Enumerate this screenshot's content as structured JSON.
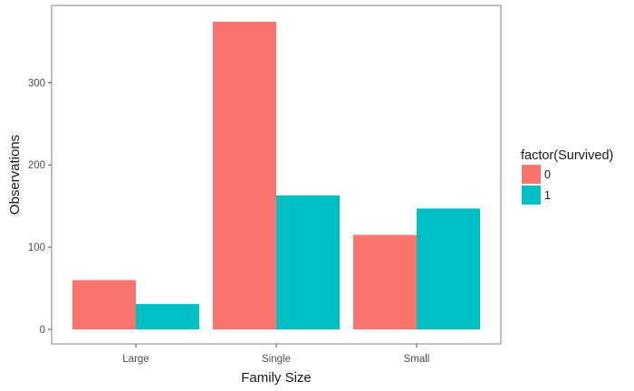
{
  "chart_data": {
    "type": "bar",
    "categories": [
      "Large",
      "Single",
      "Small"
    ],
    "series": [
      {
        "name": "0",
        "values": [
          60,
          374,
          115
        ],
        "color": "#F8766D"
      },
      {
        "name": "1",
        "values": [
          31,
          163,
          147
        ],
        "color": "#00BFC4"
      }
    ],
    "xlabel": "Family Size",
    "ylabel": "Observations",
    "ylim": [
      0,
      374
    ],
    "yticks": [
      0,
      100,
      200,
      300
    ],
    "legend": {
      "title": "factor(Survived)",
      "position": "right"
    },
    "grid": false
  }
}
